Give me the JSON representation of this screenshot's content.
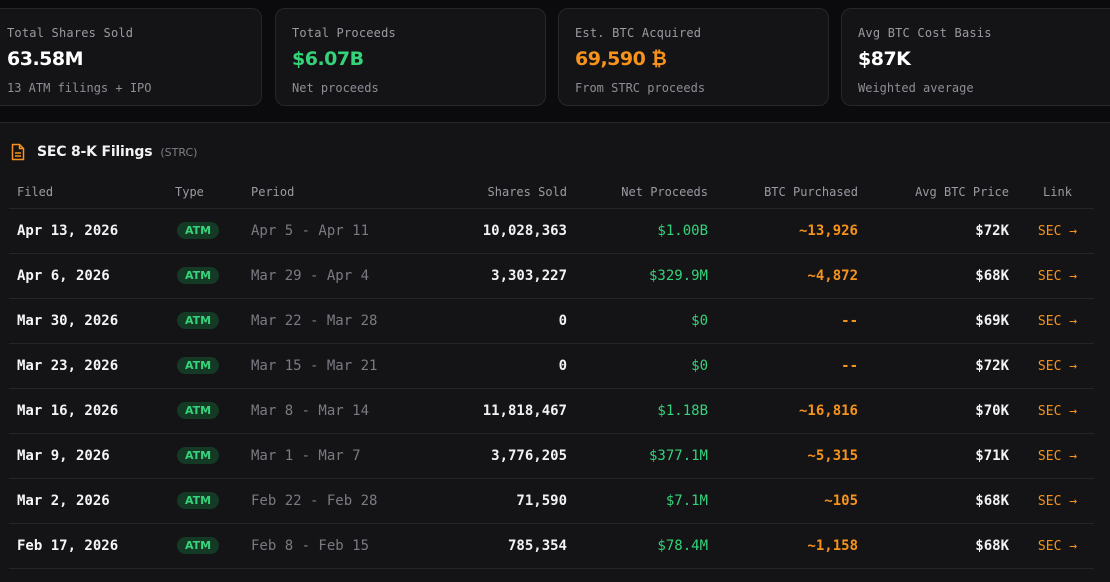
{
  "summary": [
    {
      "label": "Total Shares Sold",
      "value": "63.58M",
      "sub": "13 ATM filings + IPO"
    },
    {
      "label": "Total Proceeds",
      "value": "$6.07B",
      "sub": "Net proceeds"
    },
    {
      "label": "Est. BTC Acquired",
      "value": "69,590 ₿",
      "sub": "From STRC proceeds"
    },
    {
      "label": "Avg BTC Cost Basis",
      "value": "$87K",
      "sub": "Weighted average"
    }
  ],
  "colors": {
    "green": "#34d37a",
    "orange": "#f7931a"
  },
  "filings": {
    "title": "SEC 8-K Filings",
    "ticker": "(STRC)",
    "icon": "document-icon",
    "headers": [
      "Filed",
      "Type",
      "Period",
      "Shares Sold",
      "Net Proceeds",
      "BTC Purchased",
      "Avg BTC Price",
      "Link"
    ],
    "rows": [
      {
        "filed": "Apr 13, 2026",
        "type": "ATM",
        "period": "Apr 5 - Apr 11",
        "shares": "10,028,363",
        "net": "$1.00B",
        "btc": "~13,926",
        "avg": "$72K",
        "link": "SEC →"
      },
      {
        "filed": "Apr 6, 2026",
        "type": "ATM",
        "period": "Mar 29 - Apr 4",
        "shares": "3,303,227",
        "net": "$329.9M",
        "btc": "~4,872",
        "avg": "$68K",
        "link": "SEC →"
      },
      {
        "filed": "Mar 30, 2026",
        "type": "ATM",
        "period": "Mar 22 - Mar 28",
        "shares": "0",
        "net": "$0",
        "btc": "--",
        "avg": "$69K",
        "link": "SEC →"
      },
      {
        "filed": "Mar 23, 2026",
        "type": "ATM",
        "period": "Mar 15 - Mar 21",
        "shares": "0",
        "net": "$0",
        "btc": "--",
        "avg": "$72K",
        "link": "SEC →"
      },
      {
        "filed": "Mar 16, 2026",
        "type": "ATM",
        "period": "Mar 8 - Mar 14",
        "shares": "11,818,467",
        "net": "$1.18B",
        "btc": "~16,816",
        "avg": "$70K",
        "link": "SEC →"
      },
      {
        "filed": "Mar 9, 2026",
        "type": "ATM",
        "period": "Mar 1 - Mar 7",
        "shares": "3,776,205",
        "net": "$377.1M",
        "btc": "~5,315",
        "avg": "$71K",
        "link": "SEC →"
      },
      {
        "filed": "Mar 2, 2026",
        "type": "ATM",
        "period": "Feb 22 - Feb 28",
        "shares": "71,590",
        "net": "$7.1M",
        "btc": "~105",
        "avg": "$68K",
        "link": "SEC →"
      },
      {
        "filed": "Feb 17, 2026",
        "type": "ATM",
        "period": "Feb 8 - Feb 15",
        "shares": "785,354",
        "net": "$78.4M",
        "btc": "~1,158",
        "avg": "$68K",
        "link": "SEC →"
      }
    ]
  }
}
